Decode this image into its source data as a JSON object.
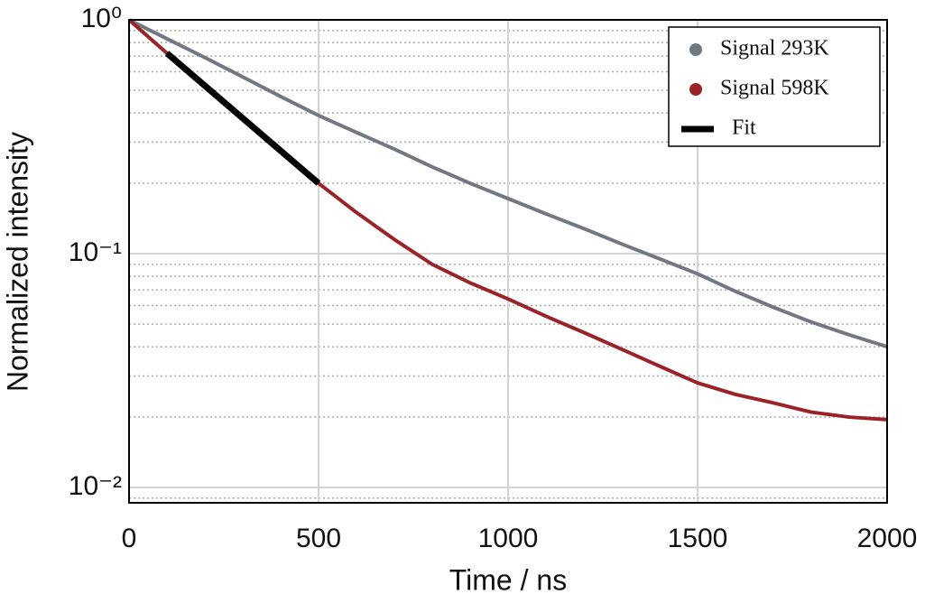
{
  "chart_data": {
    "type": "line",
    "xlabel": "Time / ns",
    "ylabel": "Normalized intensity",
    "xlim": [
      0,
      2000
    ],
    "xticks": [
      0,
      500,
      1000,
      1500,
      2000
    ],
    "ylim": [
      0.0086,
      1
    ],
    "log_y": true,
    "yticks": [
      {
        "value": 1,
        "label": "10⁰"
      },
      {
        "value": 0.1,
        "label": "10⁻¹"
      },
      {
        "value": 0.01,
        "label": "10⁻²"
      }
    ],
    "minor_yticks": [
      0.9,
      0.8,
      0.7,
      0.6,
      0.5,
      0.4,
      0.3,
      0.2,
      0.09,
      0.08,
      0.07,
      0.06,
      0.05,
      0.04,
      0.03,
      0.02,
      0.009
    ],
    "grid": true,
    "legend": "upper right",
    "x": [
      0,
      100,
      200,
      300,
      400,
      500,
      600,
      700,
      800,
      900,
      1000,
      1100,
      1200,
      1300,
      1400,
      1500,
      1600,
      1700,
      1800,
      1900,
      2000
    ],
    "series": [
      {
        "name": "Signal 293K",
        "color": "#737880",
        "style": "points",
        "values": [
          1,
          0.83,
          0.69,
          0.57,
          0.47,
          0.39,
          0.33,
          0.28,
          0.235,
          0.2,
          0.172,
          0.148,
          0.128,
          0.11,
          0.095,
          0.082,
          0.069,
          0.059,
          0.051,
          0.045,
          0.04
        ]
      },
      {
        "name": "Signal 598K",
        "color": "#9b2226",
        "style": "points",
        "values": [
          1,
          0.72,
          0.52,
          0.38,
          0.28,
          0.2,
          0.15,
          0.115,
          0.09,
          0.075,
          0.064,
          0.054,
          0.046,
          0.039,
          0.033,
          0.028,
          0.025,
          0.023,
          0.021,
          0.02,
          0.0195
        ]
      },
      {
        "name": "Fit",
        "color": "#000000",
        "style": "line",
        "x": [
          100,
          500
        ],
        "values": [
          0.72,
          0.2
        ]
      }
    ]
  }
}
